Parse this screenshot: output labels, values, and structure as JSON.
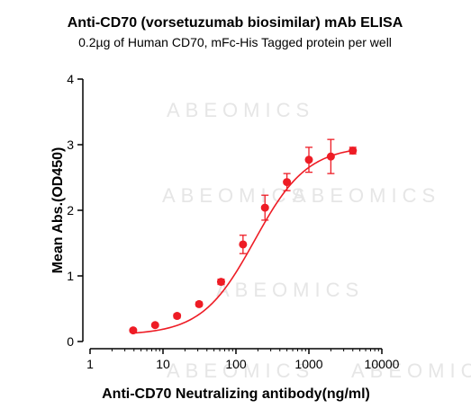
{
  "chart_data": {
    "type": "scatter",
    "title": "Anti-CD70 (vorsetuzumab biosimilar) mAb ELISA",
    "subtitle": "0.2µg of Human CD70, mFc-His Tagged protein per well",
    "xlabel": "Anti-CD70 Neutralizing antibody(ng/ml)",
    "ylabel": "Mean Abs.(OD450)",
    "x_scale": "log",
    "xlim": [
      1,
      10000
    ],
    "ylim": [
      0,
      4
    ],
    "x_ticks": [
      1,
      10,
      100,
      1000,
      10000
    ],
    "x_tick_labels": [
      "1",
      "10",
      "100",
      "1000",
      "10000"
    ],
    "y_ticks": [
      0,
      1,
      2,
      3,
      4
    ],
    "y_tick_labels": [
      "0",
      "1",
      "2",
      "3",
      "4"
    ],
    "grid": false,
    "series": [
      {
        "color": "#ee1c25",
        "points": [
          {
            "x": 3.9,
            "y": 0.17,
            "err": 0.02
          },
          {
            "x": 7.8,
            "y": 0.25,
            "err": 0.02
          },
          {
            "x": 15.6,
            "y": 0.39,
            "err": 0.03
          },
          {
            "x": 31.25,
            "y": 0.57,
            "err": 0.03
          },
          {
            "x": 62.5,
            "y": 0.91,
            "err": 0.04
          },
          {
            "x": 125,
            "y": 1.48,
            "err": 0.14
          },
          {
            "x": 250,
            "y": 2.04,
            "err": 0.19
          },
          {
            "x": 500,
            "y": 2.43,
            "err": 0.13
          },
          {
            "x": 1000,
            "y": 2.77,
            "err": 0.19
          },
          {
            "x": 2000,
            "y": 2.82,
            "err": 0.26
          },
          {
            "x": 4000,
            "y": 2.91,
            "err": 0.05
          }
        ],
        "fit": {
          "model": "4PL",
          "bottom": 0.1,
          "top": 2.98,
          "ec50": 180,
          "hill": 1.2
        }
      }
    ],
    "watermark": "ABEOMICS"
  }
}
